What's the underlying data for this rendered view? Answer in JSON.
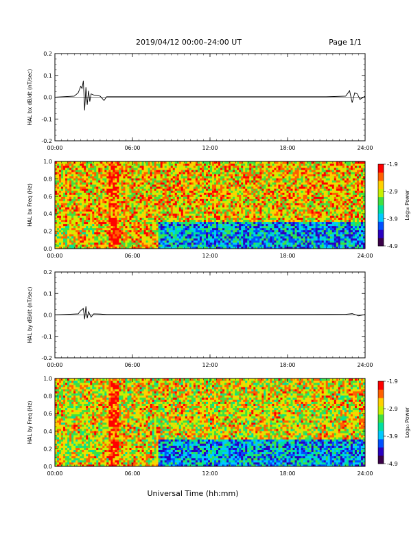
{
  "header": {
    "title": "2019/04/12  00:00–24:00 UT",
    "page": "Page 1/1"
  },
  "xaxis": {
    "ticks": [
      "00:00",
      "06:00",
      "12:00",
      "18:00",
      "24:00"
    ],
    "range_hours": [
      0,
      24
    ],
    "label": "Universal Time (hh:mm)"
  },
  "colorbar": {
    "label": "Log₁₀ Power",
    "ticks": [
      "-1.9",
      "-2.9",
      "-3.9",
      "-4.9"
    ],
    "range": [
      -4.9,
      -1.9
    ],
    "colors": [
      "#3a0048",
      "#2a00c0",
      "#0050ff",
      "#00c8ff",
      "#00e0a0",
      "#40e040",
      "#c8f000",
      "#ffd000",
      "#ff6000",
      "#ff0000"
    ]
  },
  "chart_data": [
    {
      "type": "line",
      "ylabel": "HAL bx dB/dt (nT/sec)",
      "ylim": [
        -0.2,
        0.2
      ],
      "yticks": [
        "0.2",
        "0.1",
        "0.0",
        "-0.1",
        "-0.2"
      ],
      "series": [
        {
          "x": [
            0,
            1.5,
            1.8,
            2.0,
            2.1,
            2.2,
            2.3,
            2.4,
            2.5,
            2.6,
            2.7,
            2.8,
            3.0,
            3.5,
            3.8,
            4.0,
            6.0,
            9.0,
            12.0,
            15.0,
            18.0,
            21.0,
            22.5,
            22.8,
            23.0,
            23.2,
            23.4,
            23.6,
            24.0
          ],
          "y": [
            0.0,
            0.005,
            0.02,
            0.05,
            0.04,
            0.075,
            -0.06,
            0.045,
            -0.035,
            0.03,
            -0.02,
            0.015,
            0.01,
            0.005,
            -0.015,
            0.002,
            0.002,
            0.002,
            0.002,
            0.002,
            0.002,
            0.002,
            0.005,
            0.03,
            -0.025,
            0.02,
            0.015,
            -0.01,
            0.005
          ]
        }
      ]
    },
    {
      "type": "heatmap",
      "ylabel": "HAL bx Freq (Hz)",
      "ylim": [
        0.0,
        1.0
      ],
      "yticks": [
        "1.0",
        "0.8",
        "0.6",
        "0.4",
        "0.2",
        "0.0"
      ],
      "background_log_power": -2.7,
      "features": [
        {
          "t0": 0.0,
          "t1": 1.5,
          "f0": 0.0,
          "f1": 0.25,
          "p": -3.0
        },
        {
          "t0": 2.0,
          "t1": 3.0,
          "f0": 0.15,
          "f1": 0.28,
          "p": -3.0
        },
        {
          "t0": 4.2,
          "t1": 5.0,
          "f0": 0.0,
          "f1": 1.0,
          "p": -2.2
        },
        {
          "t0": 4.4,
          "t1": 4.8,
          "f0": 0.0,
          "f1": 0.5,
          "p": -1.9
        },
        {
          "t0": 8.0,
          "t1": 24.0,
          "f0": 0.0,
          "f1": 0.3,
          "p": -3.9
        }
      ]
    },
    {
      "type": "line",
      "ylabel": "HAL by dB/dt (nT/sec)",
      "ylim": [
        -0.2,
        0.2
      ],
      "yticks": [
        "0.2",
        "0.1",
        "0.0",
        "-0.1",
        "-0.2"
      ],
      "series": [
        {
          "x": [
            0,
            1.8,
            2.0,
            2.2,
            2.3,
            2.4,
            2.5,
            2.6,
            2.8,
            3.0,
            3.5,
            4.0,
            8.0,
            12.0,
            16.0,
            20.0,
            22.5,
            23.0,
            23.5,
            24.0
          ],
          "y": [
            0.0,
            0.005,
            0.02,
            0.03,
            -0.02,
            0.04,
            -0.015,
            0.015,
            -0.01,
            0.005,
            0.004,
            0.002,
            0.002,
            0.002,
            0.002,
            0.002,
            0.003,
            0.006,
            -0.004,
            0.002
          ]
        }
      ]
    },
    {
      "type": "heatmap",
      "ylabel": "HAL by Freq (Hz)",
      "ylim": [
        0.0,
        1.0
      ],
      "yticks": [
        "1.0",
        "0.8",
        "0.6",
        "0.4",
        "0.2",
        "0.0"
      ],
      "background_log_power": -2.8,
      "features": [
        {
          "t0": 0.0,
          "t1": 3.0,
          "f0": 0.15,
          "f1": 0.3,
          "p": -3.0
        },
        {
          "t0": 4.2,
          "t1": 5.0,
          "f0": 0.0,
          "f1": 1.0,
          "p": -2.3
        },
        {
          "t0": 4.4,
          "t1": 4.8,
          "f0": 0.2,
          "f1": 0.6,
          "p": -2.0
        },
        {
          "t0": 8.0,
          "t1": 24.0,
          "f0": 0.0,
          "f1": 0.3,
          "p": -3.9
        }
      ]
    }
  ]
}
